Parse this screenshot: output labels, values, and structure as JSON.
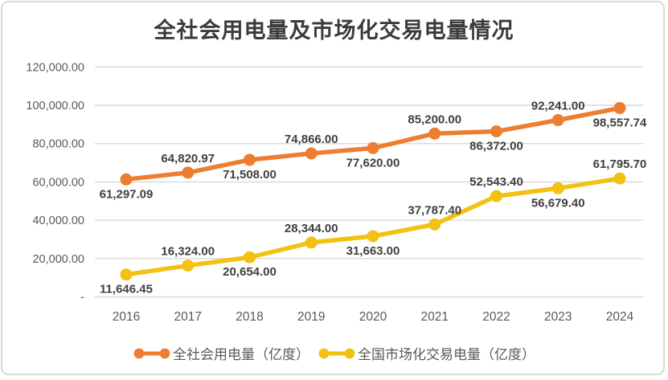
{
  "chart_data": {
    "type": "line",
    "title": "全社会用电量及市场化交易电量情况",
    "categories": [
      "2016",
      "2017",
      "2018",
      "2019",
      "2020",
      "2021",
      "2022",
      "2023",
      "2024"
    ],
    "series": [
      {
        "name": "全社会用电量（亿度）",
        "color": "#ED7D31",
        "values": [
          61297.09,
          64820.97,
          71508.0,
          74866.0,
          77620.0,
          85200.0,
          86372.0,
          92241.0,
          98557.74
        ],
        "labels": [
          "61,297.09",
          "64,820.97",
          "71,508.00",
          "74,866.00",
          "77,620.00",
          "85,200.00",
          "86,372.00",
          "92,241.00",
          "98,557.74"
        ],
        "label_placement": [
          "below",
          "above",
          "below",
          "above",
          "below",
          "above",
          "below",
          "above",
          "below"
        ]
      },
      {
        "name": "全国市场化交易电量（亿度）",
        "color": "#F2C113",
        "values": [
          11646.45,
          16324.0,
          20654.0,
          28344.0,
          31663.0,
          37787.4,
          52543.4,
          56679.4,
          61795.7
        ],
        "labels": [
          "11,646.45",
          "16,324.00",
          "20,654.00",
          "28,344.00",
          "31,663.00",
          "37,787.40",
          "52,543.40",
          "56,679.40",
          "61,795.70"
        ],
        "label_placement": [
          "below",
          "above",
          "below",
          "above",
          "below",
          "above",
          "above",
          "below",
          "above"
        ]
      }
    ],
    "y_axis": {
      "min": 0,
      "max": 120000,
      "step": 20000,
      "tick_labels": [
        "-",
        "20,000.00",
        "40,000.00",
        "60,000.00",
        "80,000.00",
        "100,000.00",
        "120,000.00"
      ]
    },
    "grid": true,
    "legend_position": "bottom",
    "legend_marker": "line-with-end-dots"
  },
  "ui_colors": {
    "background": "#ffffff",
    "card_border": "#d9d9d9",
    "gridline": "#d9d9d9",
    "axis_text": "#595959",
    "data_label_text": "#3f3f3f",
    "title_text": "#3b3b3b",
    "legend_text": "#595959"
  }
}
